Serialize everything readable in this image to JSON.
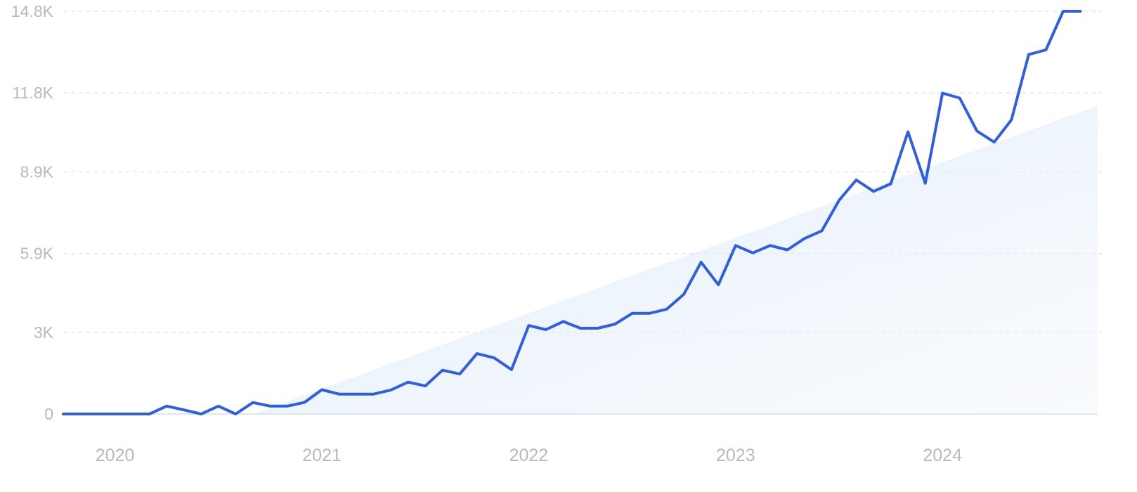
{
  "chart_data": {
    "type": "line",
    "title": "",
    "xlabel": "",
    "ylabel": "",
    "ylim": [
      0,
      14800
    ],
    "y_ticks": [
      {
        "value": 0,
        "label": "0"
      },
      {
        "value": 3000,
        "label": "3K"
      },
      {
        "value": 5900,
        "label": "5.9K"
      },
      {
        "value": 8900,
        "label": "8.9K"
      },
      {
        "value": 11800,
        "label": "11.8K"
      },
      {
        "value": 14800,
        "label": "14.8K"
      }
    ],
    "x_ticks": [
      {
        "month_index": 3,
        "label": "2020"
      },
      {
        "month_index": 15,
        "label": "2021"
      },
      {
        "month_index": 27,
        "label": "2022"
      },
      {
        "month_index": 39,
        "label": "2023"
      },
      {
        "month_index": 51,
        "label": "2024"
      }
    ],
    "x_range": [
      0,
      60
    ],
    "grid": true,
    "line_color": "#2f5fe0",
    "area_color": "#d8e7f8",
    "grid_color": "#d5e3ec",
    "series": [
      {
        "name": "",
        "values": [
          0,
          0,
          0,
          0,
          0,
          0,
          290,
          150,
          0,
          290,
          0,
          420,
          290,
          290,
          430,
          890,
          730,
          730,
          730,
          880,
          1170,
          1030,
          1610,
          1470,
          2220,
          2060,
          1630,
          3250,
          3100,
          3400,
          3150,
          3150,
          3300,
          3700,
          3700,
          3850,
          4400,
          5580,
          4750,
          6190,
          5920,
          6190,
          6030,
          6450,
          6730,
          7850,
          8600,
          8180,
          8460,
          10370,
          8480,
          11790,
          11610,
          10400,
          9990,
          10810,
          13210,
          13380,
          14800,
          14800
        ]
      }
    ],
    "trend_area": {
      "start_month": 11,
      "start_value": 0,
      "end_month": 60,
      "end_value": 11330
    }
  }
}
